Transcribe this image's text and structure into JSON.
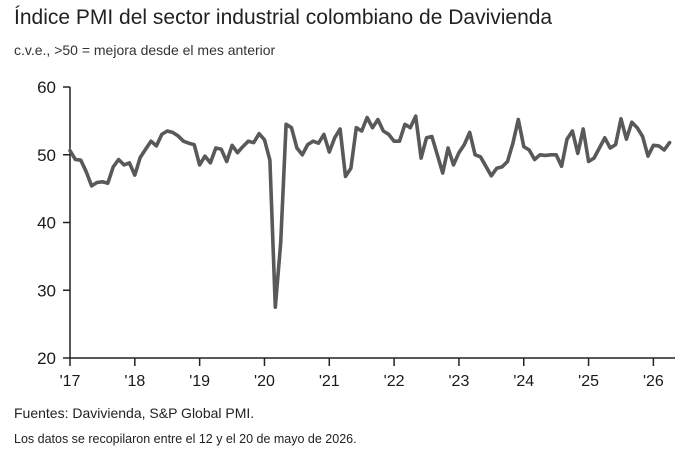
{
  "header": {
    "title": "Índice PMI del sector industrial colombiano de Davivienda",
    "subtitle": "c.v.e., >50 = mejora desde el mes anterior"
  },
  "footer": {
    "source": "Fuentes: Davivienda, S&P Global PMI.",
    "note": "Los datos se recopilaron entre el 12  y el 20 de mayo de 2026."
  },
  "colors": {
    "line": "#595959",
    "axis": "#222222"
  },
  "chart_data": {
    "type": "line",
    "title": "Índice PMI del sector industrial colombiano de Davivienda",
    "xlabel": "",
    "ylabel": "",
    "ylim": [
      20,
      60
    ],
    "yticks": [
      20,
      30,
      40,
      50,
      60
    ],
    "xlim": [
      "2017-01",
      "2026-05"
    ],
    "xticks": [
      "'17",
      "'18",
      "'19",
      "'20",
      "'21",
      "'22",
      "'23",
      "'24",
      "'25",
      "'26"
    ],
    "grid": false,
    "series": [
      {
        "values": [
          [
            "2017-01",
            50.6
          ],
          [
            "2017-02",
            49.3
          ],
          [
            "2017-03",
            49.2
          ],
          [
            "2017-04",
            47.5
          ],
          [
            "2017-05",
            45.4
          ],
          [
            "2017-06",
            45.9
          ],
          [
            "2017-07",
            46.0
          ],
          [
            "2017-08",
            45.8
          ],
          [
            "2017-09",
            48.2
          ],
          [
            "2017-10",
            49.3
          ],
          [
            "2017-11",
            48.5
          ],
          [
            "2017-12",
            48.8
          ],
          [
            "2018-01",
            47.0
          ],
          [
            "2018-02",
            49.6
          ],
          [
            "2018-03",
            50.8
          ],
          [
            "2018-04",
            52.0
          ],
          [
            "2018-05",
            51.3
          ],
          [
            "2018-06",
            53.0
          ],
          [
            "2018-07",
            53.5
          ],
          [
            "2018-08",
            53.3
          ],
          [
            "2018-09",
            52.8
          ],
          [
            "2018-10",
            52.0
          ],
          [
            "2018-11",
            51.7
          ],
          [
            "2018-12",
            51.5
          ],
          [
            "2019-01",
            48.5
          ],
          [
            "2019-02",
            49.8
          ],
          [
            "2019-03",
            48.8
          ],
          [
            "2019-04",
            51.0
          ],
          [
            "2019-05",
            50.8
          ],
          [
            "2019-06",
            49.0
          ],
          [
            "2019-07",
            51.4
          ],
          [
            "2019-08",
            50.3
          ],
          [
            "2019-09",
            51.2
          ],
          [
            "2019-10",
            52.0
          ],
          [
            "2019-11",
            51.8
          ],
          [
            "2019-12",
            53.1
          ],
          [
            "2020-01",
            52.2
          ],
          [
            "2020-02",
            49.2
          ],
          [
            "2020-03",
            27.5
          ],
          [
            "2020-04",
            37.0
          ],
          [
            "2020-05",
            54.5
          ],
          [
            "2020-06",
            54.0
          ],
          [
            "2020-07",
            51.0
          ],
          [
            "2020-08",
            50.0
          ],
          [
            "2020-09",
            51.5
          ],
          [
            "2020-10",
            52.0
          ],
          [
            "2020-11",
            51.7
          ],
          [
            "2020-12",
            53.0
          ],
          [
            "2021-01",
            50.4
          ],
          [
            "2021-02",
            52.5
          ],
          [
            "2021-03",
            53.8
          ],
          [
            "2021-04",
            46.8
          ],
          [
            "2021-05",
            48.0
          ],
          [
            "2021-06",
            54.0
          ],
          [
            "2021-07",
            53.5
          ],
          [
            "2021-08",
            55.5
          ],
          [
            "2021-09",
            54.0
          ],
          [
            "2021-10",
            55.2
          ],
          [
            "2021-11",
            53.5
          ],
          [
            "2021-12",
            53.0
          ],
          [
            "2022-01",
            52.0
          ],
          [
            "2022-02",
            52.0
          ],
          [
            "2022-03",
            54.5
          ],
          [
            "2022-04",
            54.0
          ],
          [
            "2022-05",
            55.7
          ],
          [
            "2022-06",
            49.5
          ],
          [
            "2022-07",
            52.5
          ],
          [
            "2022-08",
            52.7
          ],
          [
            "2022-09",
            50.0
          ],
          [
            "2022-10",
            47.3
          ],
          [
            "2022-11",
            51.0
          ],
          [
            "2022-12",
            48.5
          ],
          [
            "2023-01",
            50.3
          ],
          [
            "2023-02",
            51.5
          ],
          [
            "2023-03",
            53.3
          ],
          [
            "2023-04",
            50.0
          ],
          [
            "2023-05",
            49.7
          ],
          [
            "2023-06",
            48.3
          ],
          [
            "2023-07",
            46.9
          ],
          [
            "2023-08",
            48.0
          ],
          [
            "2023-09",
            48.2
          ],
          [
            "2023-10",
            49.0
          ],
          [
            "2023-11",
            51.7
          ],
          [
            "2023-12",
            55.2
          ],
          [
            "2024-01",
            51.2
          ],
          [
            "2024-02",
            50.7
          ],
          [
            "2024-03",
            49.3
          ],
          [
            "2024-04",
            50.0
          ],
          [
            "2024-05",
            49.9
          ],
          [
            "2024-06",
            50.0
          ],
          [
            "2024-07",
            50.0
          ],
          [
            "2024-08",
            48.3
          ],
          [
            "2024-09",
            52.3
          ],
          [
            "2024-10",
            53.5
          ],
          [
            "2024-11",
            50.2
          ],
          [
            "2024-12",
            53.8
          ],
          [
            "2025-01",
            49.0
          ],
          [
            "2025-02",
            49.5
          ],
          [
            "2025-03",
            51.0
          ],
          [
            "2025-04",
            52.5
          ],
          [
            "2025-05",
            51.0
          ],
          [
            "2025-06",
            51.5
          ],
          [
            "2025-07",
            55.3
          ],
          [
            "2025-08",
            52.3
          ],
          [
            "2025-09",
            54.8
          ],
          [
            "2025-10",
            54.0
          ],
          [
            "2025-11",
            52.7
          ],
          [
            "2025-12",
            49.8
          ],
          [
            "2026-01",
            51.4
          ],
          [
            "2026-02",
            51.3
          ],
          [
            "2026-03",
            50.7
          ],
          [
            "2026-04",
            51.8
          ]
        ]
      }
    ]
  }
}
